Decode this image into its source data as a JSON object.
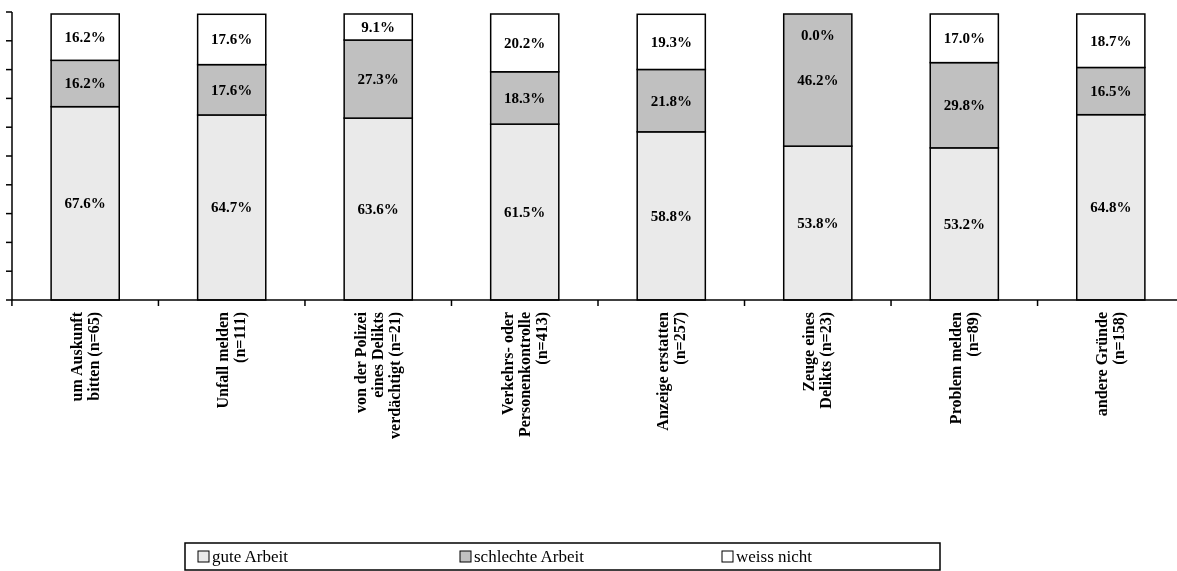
{
  "chart_data": {
    "type": "bar",
    "stacked": true,
    "categories": [
      "um Auskunft\nbitten (n=65)",
      "Unfall melden\n(n=111)",
      "von der Polizei\neines Delikts\nverdächtigt (n=21)",
      "Verkehrs- oder\nPersonenkontrolle\n(n=413)",
      "Anzeige erstatten\n(n=257)",
      "Zeuge eines\nDelikts (n=23)",
      "Problem melden\n(n=89)",
      "andere Gründe\n(n=158)"
    ],
    "series": [
      {
        "name": "gute Arbeit",
        "color": "#eaeaea",
        "values": [
          67.6,
          64.7,
          63.6,
          61.5,
          58.8,
          53.8,
          53.2,
          64.8
        ],
        "value_labels": [
          "67.6%",
          "64.7%",
          "63.6%",
          "61.5%",
          "58.8%",
          "53.8%",
          "53.2%",
          "64.8%"
        ]
      },
      {
        "name": "schlechte Arbeit",
        "color": "#c0c0c0",
        "values": [
          16.2,
          17.6,
          27.3,
          18.3,
          21.8,
          46.2,
          29.8,
          16.5
        ],
        "value_labels": [
          "16.2%",
          "17.6%",
          "27.3%",
          "18.3%",
          "21.8%",
          "46.2%",
          "29.8%",
          "16.5%"
        ]
      },
      {
        "name": "weiss nicht",
        "color": "#ffffff",
        "values": [
          16.2,
          17.6,
          9.1,
          20.2,
          19.3,
          0.0,
          17.0,
          18.7
        ],
        "value_labels": [
          "16.2%",
          "17.6%",
          "9.1%",
          "20.2%",
          "19.3%",
          "0.0%",
          "17.0%",
          "18.7%"
        ]
      }
    ],
    "tick_labels": "x",
    "legend": "bottom"
  }
}
